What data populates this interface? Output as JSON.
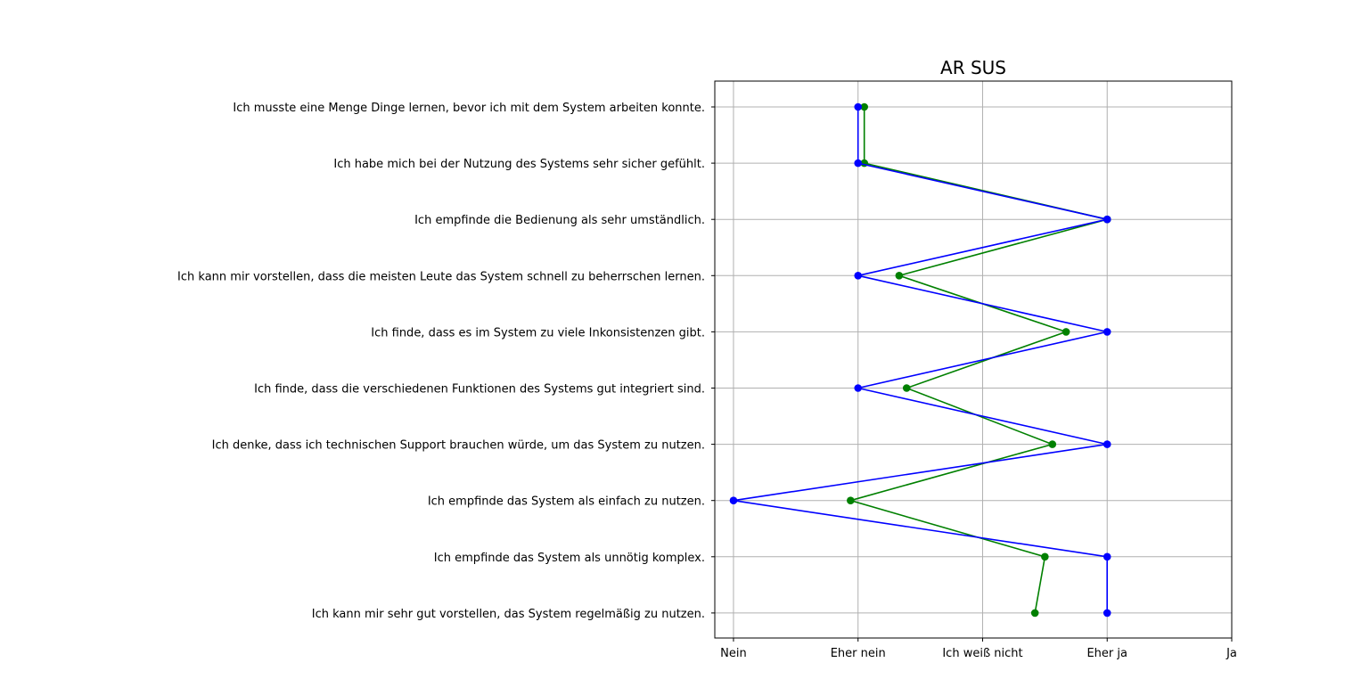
{
  "chart_data": {
    "type": "line",
    "title": "AR SUS",
    "xlabel": "",
    "ylabel": "",
    "grid": true,
    "x_categories": [
      "Nein",
      "Eher nein",
      "Ich weiß nicht",
      "Eher ja",
      "Ja"
    ],
    "xlim": [
      -0.15,
      4.0
    ],
    "y_categories": [
      "Ich musste eine Menge Dinge lernen, bevor ich mit dem System arbeiten konnte.",
      "Ich habe mich bei der Nutzung des Systems sehr sicher gefühlt.",
      "Ich empfinde die Bedienung als sehr umständlich.",
      "Ich kann mir vorstellen, dass die meisten Leute das System schnell zu beherrschen lernen.",
      "Ich finde, dass es im System zu viele Inkonsistenzen gibt.",
      "Ich finde, dass die verschiedenen Funktionen des Systems gut integriert sind.",
      "Ich denke, dass ich technischen Support brauchen würde, um das System zu nutzen.",
      "Ich empfinde das System als einfach zu nutzen.",
      "Ich empfinde das System als unnötig komplex.",
      "Ich kann mir sehr gut vorstellen, das System regelmäßig zu nutzen."
    ],
    "series": [
      {
        "color": "#008000",
        "values": [
          1.05,
          1.05,
          3.0,
          1.33,
          2.67,
          1.39,
          2.56,
          0.94,
          2.5,
          2.42
        ]
      },
      {
        "color": "#0000ff",
        "values": [
          1.0,
          1.0,
          3.0,
          1.0,
          3.0,
          1.0,
          3.0,
          0.0,
          3.0,
          3.0
        ]
      }
    ]
  }
}
